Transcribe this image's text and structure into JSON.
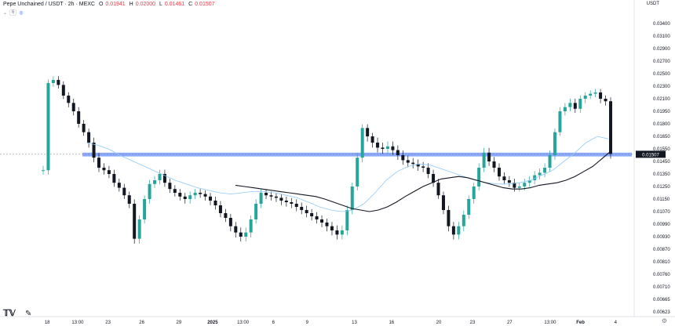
{
  "header": {
    "symbol": "Pepe Unchained / USDT · 2h · MEXC",
    "o_label": "O",
    "o_value": "0.01941",
    "h_label": "H",
    "h_value": "0.02000",
    "l_label": "L",
    "l_value": "0.01461",
    "c_label": "C",
    "c_value": "0.01507",
    "indicator_count": "6",
    "currency": "USDT"
  },
  "colors": {
    "up": "#26a69a",
    "down": "#131722",
    "ma_dark": "#131722",
    "ma_blue": "#90caf9",
    "zone": "#2962ff",
    "last_price_bg": "#131722"
  },
  "icons": {
    "logo": "tradingview-logo-icon",
    "settings": "gear-icon",
    "indicator": "indicator-icon"
  },
  "chart_data": {
    "type": "candlestick",
    "title": "Pepe Unchained / USDT · 2h · MEXC",
    "y_ticks": [
      "0.03400",
      "0.03100",
      "0.02900",
      "0.02700",
      "0.02500",
      "0.02300",
      "0.02100",
      "0.01950",
      "0.01800",
      "0.01650",
      "0.01550",
      "0.01450",
      "0.01350",
      "0.01250",
      "0.01150",
      "0.01070",
      "0.00990",
      "0.00930",
      "0.00870",
      "0.00810",
      "0.00760",
      "0.00710",
      "0.00665",
      "0.00623"
    ],
    "x_ticks": [
      "18",
      "13:00",
      "23",
      "26",
      "29",
      "2025",
      "13:00",
      "6",
      "9",
      "13",
      "16",
      "20",
      "23",
      "27",
      "13:00",
      "Feb",
      "4"
    ],
    "last_price": 0.01507,
    "support_zone": [
      0.0149,
      0.0152
    ],
    "series": [
      {
        "name": "",
        "kind": "close",
        "values": [
          0.0138,
          0.0235,
          0.024,
          0.0232,
          0.0215,
          0.0205,
          0.0195,
          0.018,
          0.017,
          0.016,
          0.0148,
          0.014,
          0.0138,
          0.0135,
          0.0128,
          0.0124,
          0.0118,
          0.0112,
          0.0092,
          0.0102,
          0.0115,
          0.0127,
          0.013,
          0.0135,
          0.0128,
          0.0123,
          0.012,
          0.0117,
          0.0115,
          0.0118,
          0.012,
          0.0119,
          0.0117,
          0.0114,
          0.0111,
          0.0106,
          0.0103,
          0.0098,
          0.0095,
          0.0093,
          0.0095,
          0.0102,
          0.0112,
          0.012,
          0.0118,
          0.0117,
          0.0116,
          0.0114,
          0.0113,
          0.0112,
          0.011,
          0.0108,
          0.0106,
          0.0104,
          0.0102,
          0.01,
          0.0098,
          0.0096,
          0.0094,
          0.0096,
          0.0108,
          0.0125,
          0.0148,
          0.0175,
          0.0165,
          0.016,
          0.0156,
          0.0155,
          0.0157,
          0.0154,
          0.015,
          0.0146,
          0.0144,
          0.0143,
          0.0141,
          0.014,
          0.0135,
          0.0128,
          0.0118,
          0.0108,
          0.0098,
          0.0094,
          0.0098,
          0.0105,
          0.0115,
          0.0125,
          0.014,
          0.0152,
          0.0145,
          0.014,
          0.0133,
          0.013,
          0.0128,
          0.0124,
          0.0125,
          0.0128,
          0.013,
          0.0134,
          0.0136,
          0.014,
          0.015,
          0.017,
          0.0195,
          0.02,
          0.0205,
          0.0198,
          0.021,
          0.0215,
          0.0218,
          0.022,
          0.021,
          0.0207,
          0.0151
        ]
      },
      {
        "name": "",
        "kind": "ma_long",
        "values": [
          0.0126,
          0.0125,
          0.0124,
          0.0123,
          0.0122,
          0.0121,
          0.012,
          0.0119,
          0.0118,
          0.0117,
          0.0115,
          0.0113,
          0.0111,
          0.0109,
          0.0108,
          0.0107,
          0.0108,
          0.011,
          0.0113,
          0.0117,
          0.0121,
          0.0125,
          0.0128,
          0.0131,
          0.0132,
          0.0133,
          0.0132,
          0.013,
          0.0128,
          0.0126,
          0.0124,
          0.0123,
          0.0123,
          0.0124,
          0.0126,
          0.0127,
          0.0128,
          0.013,
          0.0133,
          0.0137,
          0.0141,
          0.0147,
          0.0153
        ]
      },
      {
        "name": "",
        "kind": "ma_blue",
        "values": [
          0.016,
          0.0158,
          0.0155,
          0.015,
          0.0146,
          0.0142,
          0.0138,
          0.0134,
          0.013,
          0.0127,
          0.0124,
          0.0122,
          0.012,
          0.0119,
          0.012,
          0.0121,
          0.0121,
          0.012,
          0.0118,
          0.0116,
          0.0113,
          0.011,
          0.0108,
          0.0107,
          0.0108,
          0.0112,
          0.012,
          0.013,
          0.0137,
          0.0141,
          0.0143,
          0.0142,
          0.0139,
          0.0136,
          0.0133,
          0.013,
          0.0128,
          0.0127,
          0.0127,
          0.0128,
          0.013,
          0.0134,
          0.0138,
          0.0145,
          0.0152,
          0.016,
          0.0165,
          0.0163
        ]
      }
    ]
  }
}
